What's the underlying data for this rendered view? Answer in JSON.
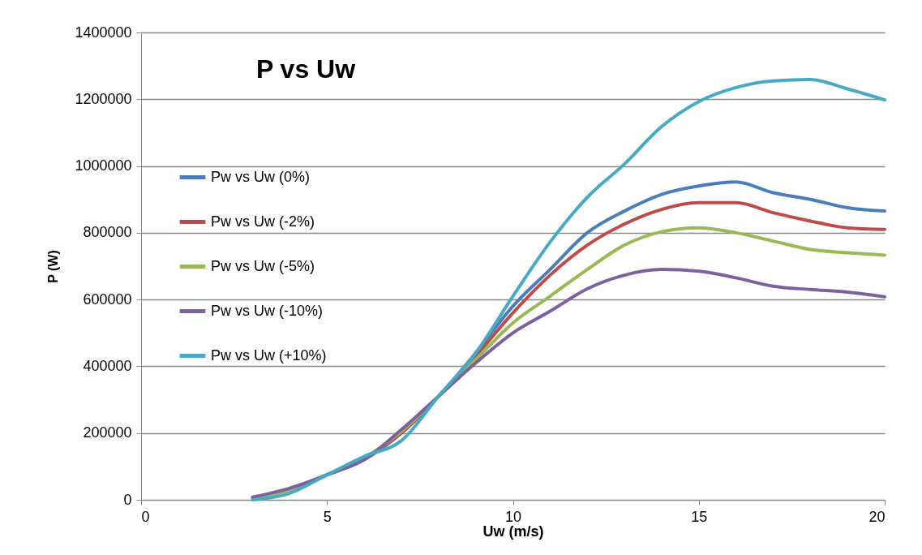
{
  "chart_data": {
    "type": "line",
    "title": "P vs Uw",
    "xlabel": "Uw (m/s)",
    "ylabel": "P (W)",
    "x": [
      3,
      4,
      5,
      6,
      7,
      8,
      9,
      10,
      11,
      12,
      13,
      14,
      15,
      16,
      17,
      18,
      19,
      20
    ],
    "series": [
      {
        "name": "Pw vs Uw (0%)",
        "color": "#4a7ebb",
        "values": [
          5000,
          30000,
          75000,
          120000,
          200000,
          310000,
          440000,
          580000,
          690000,
          800000,
          865000,
          915000,
          940000,
          952000,
          920000,
          900000,
          875000,
          865000
        ]
      },
      {
        "name": "Pw vs Uw (-2%)",
        "color": "#be4b48",
        "values": [
          null,
          null,
          75000,
          125000,
          200000,
          310000,
          430000,
          560000,
          673000,
          763000,
          826000,
          870000,
          890000,
          890000,
          860000,
          835000,
          815000,
          810000
        ]
      },
      {
        "name": "Pw vs Uw (-5%)",
        "color": "#98b954",
        "values": [
          5000,
          30000,
          75000,
          125000,
          205000,
          310000,
          420000,
          530000,
          610000,
          690000,
          763000,
          803000,
          815000,
          800000,
          775000,
          750000,
          740000,
          733000
        ]
      },
      {
        "name": "Pw vs Uw (-10%)",
        "color": "#7d60a0",
        "values": [
          8000,
          35000,
          75000,
          120000,
          210000,
          310000,
          410000,
          500000,
          565000,
          632000,
          673000,
          690000,
          685000,
          665000,
          640000,
          630000,
          622000,
          608000
        ]
      },
      {
        "name": "Pw vs Uw (+10%)",
        "color": "#46aac5",
        "values": [
          0,
          20000,
          75000,
          130000,
          177000,
          310000,
          440000,
          610000,
          772000,
          906000,
          1006000,
          1118000,
          1193000,
          1235000,
          1255000,
          1259000,
          1231000,
          1198000
        ]
      }
    ],
    "xlim": [
      0,
      20
    ],
    "xticks": [
      0,
      5,
      10,
      15,
      20
    ],
    "ylim": [
      0,
      1400000
    ],
    "yticks": [
      0,
      200000,
      400000,
      600000,
      800000,
      1000000,
      1200000,
      1400000
    ],
    "grid": "y",
    "legend": "left",
    "line_style": "solid",
    "marker": "none"
  }
}
